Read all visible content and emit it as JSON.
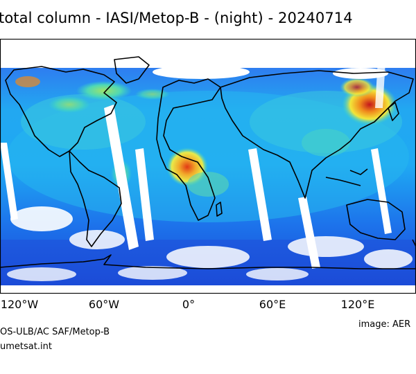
{
  "title": "total column - IASI/Metop-B - (night) - 20240714",
  "axis": {
    "lon_ticks": [
      "120°W",
      "60°W",
      "0°",
      "60°E",
      "120°E"
    ]
  },
  "credits": {
    "source_line": "OS-ULB/AC SAF/Metop-B",
    "website_line": "umetsat.int",
    "image_line": "image: AER"
  },
  "colors": {
    "ocean_gap": "#ffffff",
    "low": "#1f4fd8",
    "mid_low": "#16a9f0",
    "mid": "#39d6c5",
    "mid_high": "#f2e63a",
    "high": "#f08a1c",
    "very_high": "#c4161c",
    "coastline": "#000000"
  }
}
